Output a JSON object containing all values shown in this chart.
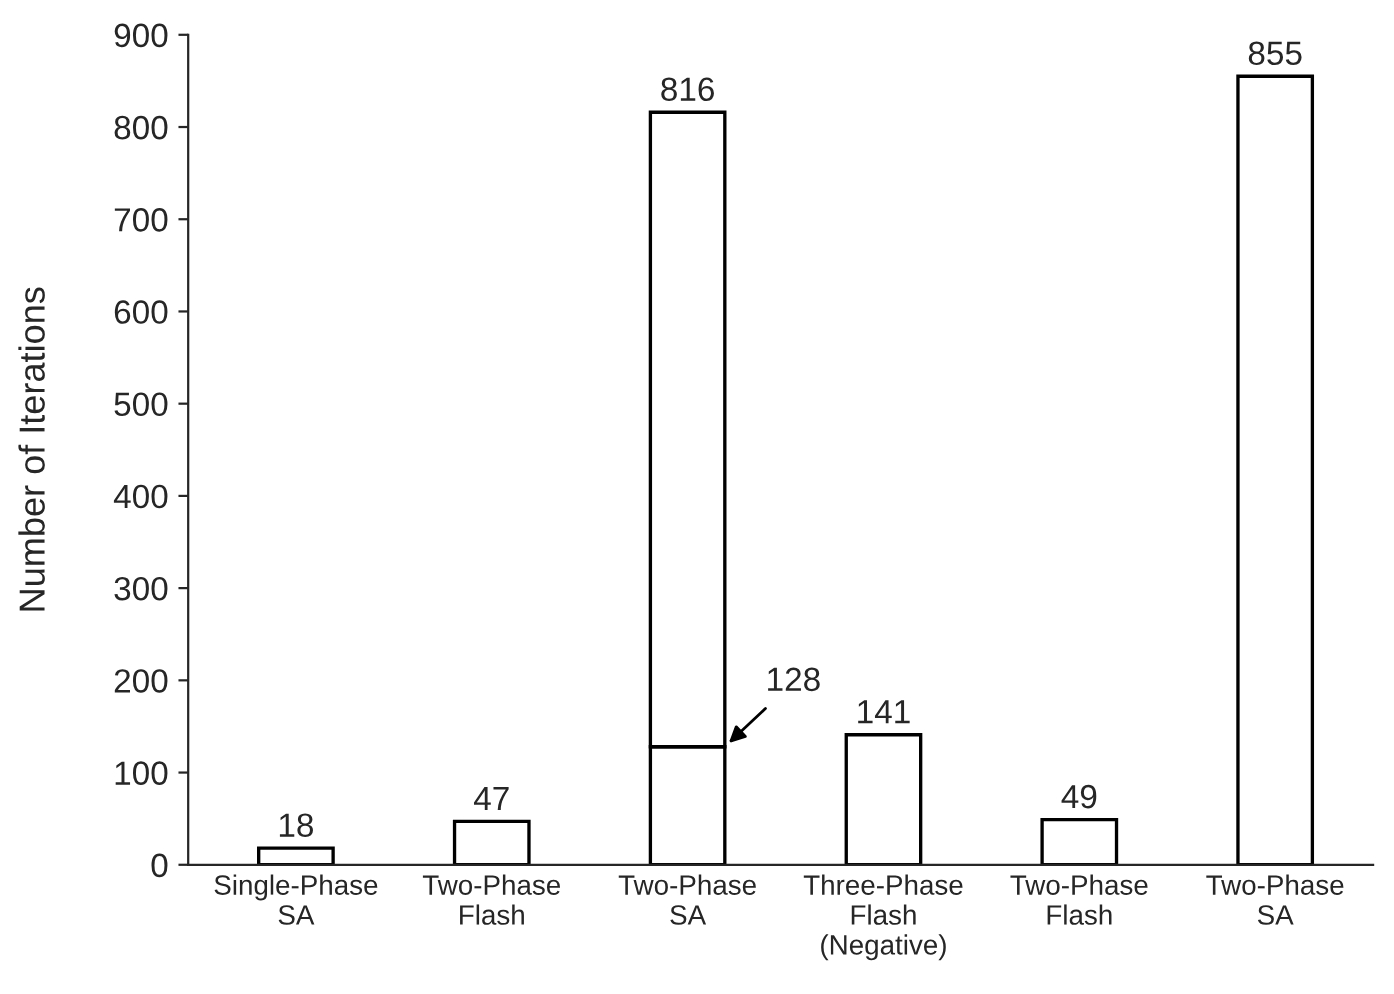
{
  "chart_data": {
    "type": "bar",
    "stacked": true,
    "ylabel": "Number of Iterations",
    "categories": [
      "Single-Phase\nSA",
      "Two-Phase\nFlash",
      "Two-Phase\nSA",
      "Three-Phase\nFlash\n(Negative)",
      "Two-Phase\nFlash",
      "Two-Phase\nSA"
    ],
    "series": [
      {
        "color": "#ffffff",
        "values": [
          18,
          47,
          128,
          141,
          49,
          855
        ],
        "value_labels": [
          null,
          null,
          "128",
          null,
          null,
          null
        ]
      },
      {
        "color": "#ffffff",
        "values": [
          null,
          null,
          688,
          null,
          null,
          null
        ]
      }
    ],
    "totals": [
      "18",
      "47",
      "816",
      "141",
      "49",
      "855"
    ],
    "ylim": [
      0,
      900
    ],
    "yticks": [
      0,
      100,
      200,
      300,
      400,
      500,
      600,
      700,
      800,
      900
    ],
    "grid": false,
    "legend": false
  }
}
